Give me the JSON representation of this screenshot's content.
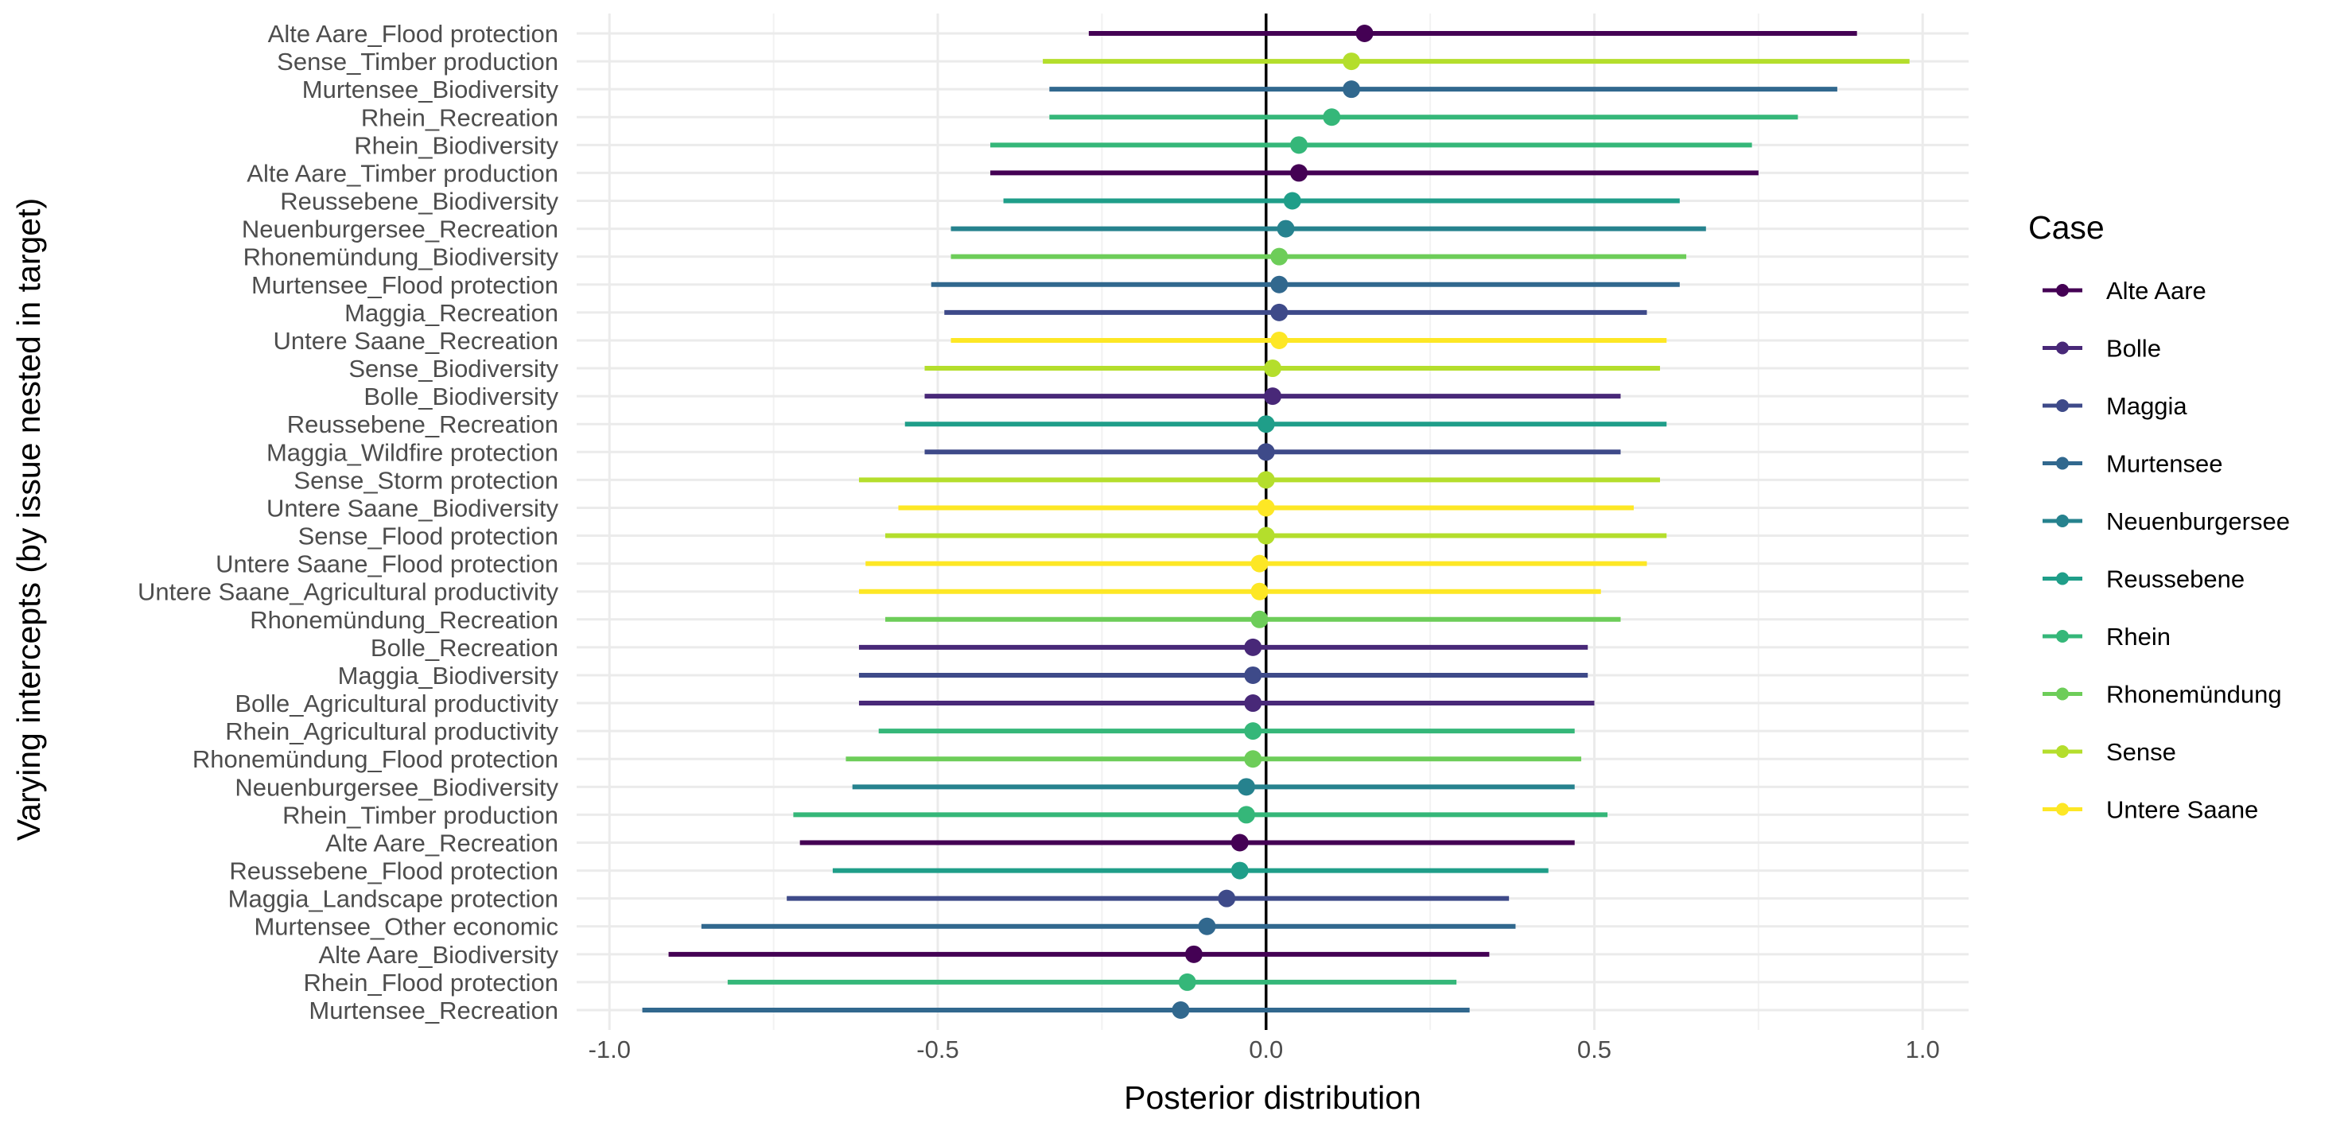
{
  "chart_data": {
    "type": "scatter",
    "subtype": "pointrange",
    "title": "",
    "xlabel": "Posterior distribution",
    "ylabel": "Varying intercepts (by issue nested in target)",
    "xlim": [
      -1.05,
      1.07
    ],
    "x_ticks": [
      -1.0,
      -0.5,
      0,
      0.5,
      1.0
    ],
    "x_tick_labels": [
      "-1.0",
      "-0.5",
      "0.0",
      "0.5",
      "1.0"
    ],
    "reference_line_x": 0,
    "grid": true,
    "legend": {
      "title": "Case",
      "position": "right",
      "entries": [
        {
          "name": "Alte Aare",
          "color": "#440154"
        },
        {
          "name": "Bolle",
          "color": "#482878"
        },
        {
          "name": "Maggia",
          "color": "#3E4A89"
        },
        {
          "name": "Murtensee",
          "color": "#31688E"
        },
        {
          "name": "Neuenburgersee",
          "color": "#26828E"
        },
        {
          "name": "Reussebene",
          "color": "#1F9E89"
        },
        {
          "name": "Rhein",
          "color": "#35B779"
        },
        {
          "name": "Rhonemündung",
          "color": "#6DCD59"
        },
        {
          "name": "Sense",
          "color": "#B4DE2C"
        },
        {
          "name": "Untere Saane",
          "color": "#FDE725"
        }
      ]
    },
    "series": [
      {
        "label": "Alte Aare_Flood protection",
        "case": "Alte Aare",
        "estimate": 0.15,
        "lower": -0.27,
        "upper": 0.9
      },
      {
        "label": "Sense_Timber production",
        "case": "Sense",
        "estimate": 0.13,
        "lower": -0.34,
        "upper": 0.98
      },
      {
        "label": "Murtensee_Biodiversity",
        "case": "Murtensee",
        "estimate": 0.13,
        "lower": -0.33,
        "upper": 0.87
      },
      {
        "label": "Rhein_Recreation",
        "case": "Rhein",
        "estimate": 0.1,
        "lower": -0.33,
        "upper": 0.81
      },
      {
        "label": "Rhein_Biodiversity",
        "case": "Rhein",
        "estimate": 0.05,
        "lower": -0.42,
        "upper": 0.74
      },
      {
        "label": "Alte Aare_Timber production",
        "case": "Alte Aare",
        "estimate": 0.05,
        "lower": -0.42,
        "upper": 0.75
      },
      {
        "label": "Reussebene_Biodiversity",
        "case": "Reussebene",
        "estimate": 0.04,
        "lower": -0.4,
        "upper": 0.63
      },
      {
        "label": "Neuenburgersee_Recreation",
        "case": "Neuenburgersee",
        "estimate": 0.03,
        "lower": -0.48,
        "upper": 0.67
      },
      {
        "label": "Rhonemündung_Biodiversity",
        "case": "Rhonemündung",
        "estimate": 0.02,
        "lower": -0.48,
        "upper": 0.64
      },
      {
        "label": "Murtensee_Flood protection",
        "case": "Murtensee",
        "estimate": 0.02,
        "lower": -0.51,
        "upper": 0.63
      },
      {
        "label": "Maggia_Recreation",
        "case": "Maggia",
        "estimate": 0.02,
        "lower": -0.49,
        "upper": 0.58
      },
      {
        "label": "Untere Saane_Recreation",
        "case": "Untere Saane",
        "estimate": 0.02,
        "lower": -0.48,
        "upper": 0.61
      },
      {
        "label": "Sense_Biodiversity",
        "case": "Sense",
        "estimate": 0.01,
        "lower": -0.52,
        "upper": 0.6
      },
      {
        "label": "Bolle_Biodiversity",
        "case": "Bolle",
        "estimate": 0.01,
        "lower": -0.52,
        "upper": 0.54
      },
      {
        "label": "Reussebene_Recreation",
        "case": "Reussebene",
        "estimate": 0.0,
        "lower": -0.55,
        "upper": 0.61
      },
      {
        "label": "Maggia_Wildfire protection",
        "case": "Maggia",
        "estimate": 0.0,
        "lower": -0.52,
        "upper": 0.54
      },
      {
        "label": "Sense_Storm protection",
        "case": "Sense",
        "estimate": 0.0,
        "lower": -0.62,
        "upper": 0.6
      },
      {
        "label": "Untere Saane_Biodiversity",
        "case": "Untere Saane",
        "estimate": 0.0,
        "lower": -0.56,
        "upper": 0.56
      },
      {
        "label": "Sense_Flood protection",
        "case": "Sense",
        "estimate": 0.0,
        "lower": -0.58,
        "upper": 0.61
      },
      {
        "label": "Untere Saane_Flood protection",
        "case": "Untere Saane",
        "estimate": -0.01,
        "lower": -0.61,
        "upper": 0.58
      },
      {
        "label": "Untere Saane_Agricultural productivity",
        "case": "Untere Saane",
        "estimate": -0.01,
        "lower": -0.62,
        "upper": 0.51
      },
      {
        "label": "Rhonemündung_Recreation",
        "case": "Rhonemündung",
        "estimate": -0.01,
        "lower": -0.58,
        "upper": 0.54
      },
      {
        "label": "Bolle_Recreation",
        "case": "Bolle",
        "estimate": -0.02,
        "lower": -0.62,
        "upper": 0.49
      },
      {
        "label": "Maggia_Biodiversity",
        "case": "Maggia",
        "estimate": -0.02,
        "lower": -0.62,
        "upper": 0.49
      },
      {
        "label": "Bolle_Agricultural productivity",
        "case": "Bolle",
        "estimate": -0.02,
        "lower": -0.62,
        "upper": 0.5
      },
      {
        "label": "Rhein_Agricultural productivity",
        "case": "Rhein",
        "estimate": -0.02,
        "lower": -0.59,
        "upper": 0.47
      },
      {
        "label": "Rhonemündung_Flood protection",
        "case": "Rhonemündung",
        "estimate": -0.02,
        "lower": -0.64,
        "upper": 0.48
      },
      {
        "label": "Neuenburgersee_Biodiversity",
        "case": "Neuenburgersee",
        "estimate": -0.03,
        "lower": -0.63,
        "upper": 0.47
      },
      {
        "label": "Rhein_Timber production",
        "case": "Rhein",
        "estimate": -0.03,
        "lower": -0.72,
        "upper": 0.52
      },
      {
        "label": "Alte Aare_Recreation",
        "case": "Alte Aare",
        "estimate": -0.04,
        "lower": -0.71,
        "upper": 0.47
      },
      {
        "label": "Reussebene_Flood protection",
        "case": "Reussebene",
        "estimate": -0.04,
        "lower": -0.66,
        "upper": 0.43
      },
      {
        "label": "Maggia_Landscape protection",
        "case": "Maggia",
        "estimate": -0.06,
        "lower": -0.73,
        "upper": 0.37
      },
      {
        "label": "Murtensee_Other economic",
        "case": "Murtensee",
        "estimate": -0.09,
        "lower": -0.86,
        "upper": 0.38
      },
      {
        "label": "Alte Aare_Biodiversity",
        "case": "Alte Aare",
        "estimate": -0.11,
        "lower": -0.91,
        "upper": 0.34
      },
      {
        "label": "Rhein_Flood protection",
        "case": "Rhein",
        "estimate": -0.12,
        "lower": -0.82,
        "upper": 0.29
      },
      {
        "label": "Murtensee_Recreation",
        "case": "Murtensee",
        "estimate": -0.13,
        "lower": -0.95,
        "upper": 0.31
      }
    ]
  }
}
